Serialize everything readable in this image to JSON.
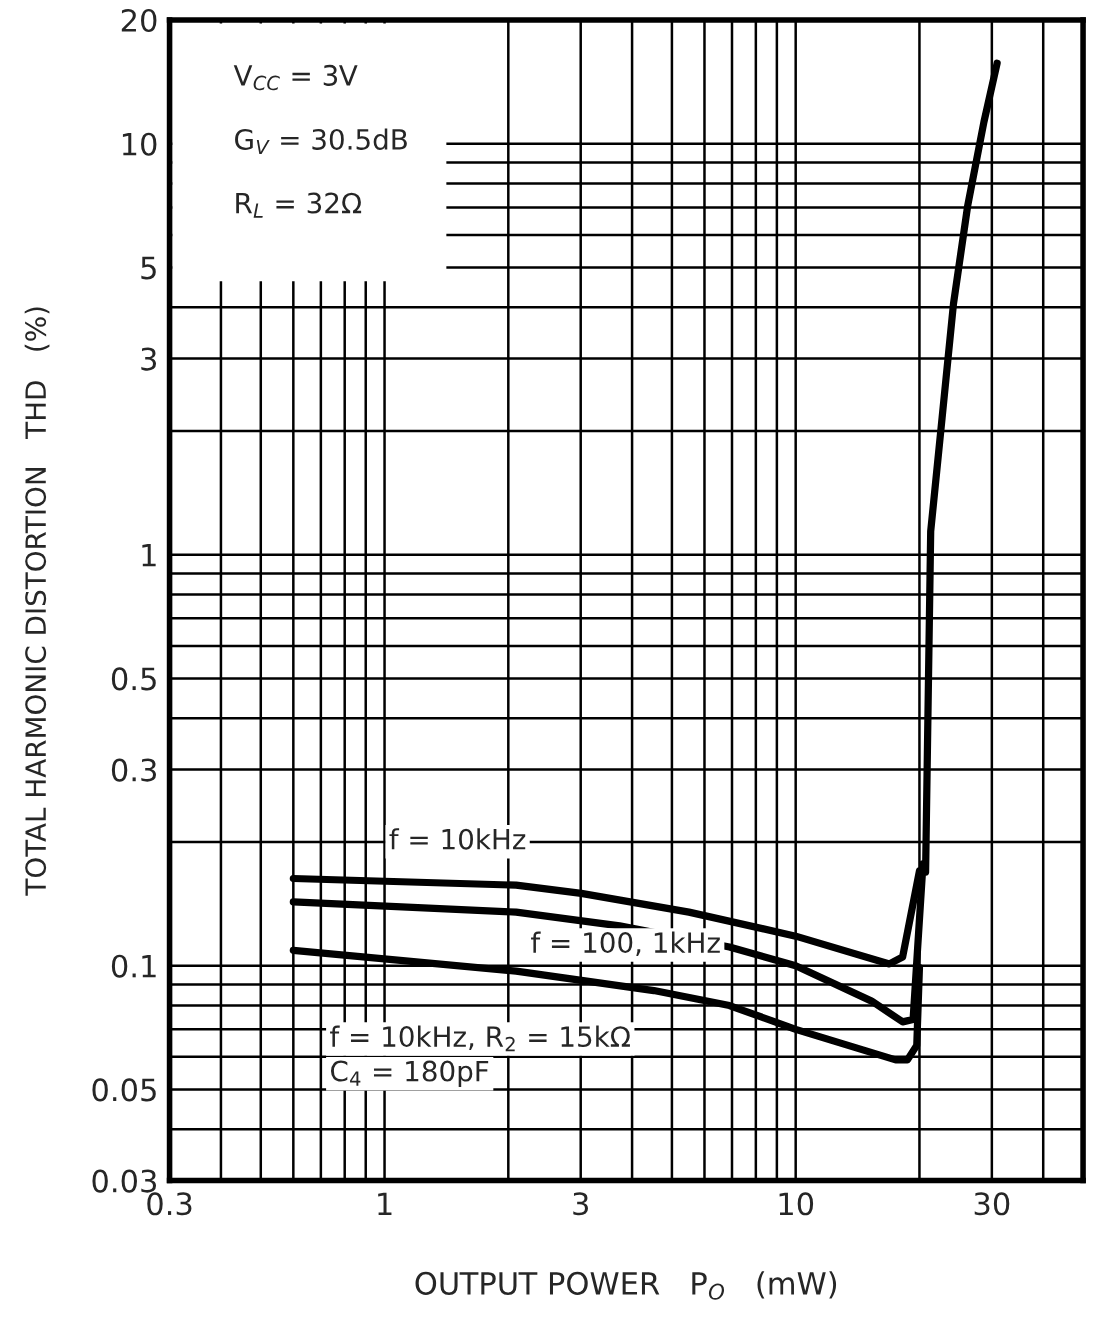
{
  "chart_data": {
    "type": "line",
    "xlabel": "OUTPUT POWER   P$_{O}$   (mW)",
    "ylabel": "TOTAL HARMONIC DISTORTION   THD   (%)",
    "log": "xy",
    "grid": true,
    "line_style": "solid",
    "marker": "none",
    "xlim": [
      0.3,
      50
    ],
    "ylim": [
      0.03,
      20
    ],
    "xticks": [
      0.3,
      {
        "value": 0.4,
        "label": null
      },
      {
        "value": 0.5,
        "label": null
      },
      {
        "value": 0.6,
        "label": null
      },
      {
        "value": 0.7,
        "label": null
      },
      {
        "value": 0.8,
        "label": null
      },
      {
        "value": 0.9,
        "label": null
      },
      1,
      {
        "value": 2,
        "label": null
      },
      3,
      {
        "value": 4,
        "label": null
      },
      {
        "value": 5,
        "label": null
      },
      {
        "value": 6,
        "label": null
      },
      {
        "value": 7,
        "label": null
      },
      {
        "value": 8,
        "label": null
      },
      {
        "value": 9,
        "label": null
      },
      10,
      {
        "value": 20,
        "label": null
      },
      30,
      {
        "value": 40,
        "label": null
      }
    ],
    "yticks": [
      0.03,
      {
        "value": 0.04,
        "label": null
      },
      0.05,
      {
        "value": 0.06,
        "label": null
      },
      {
        "value": 0.07,
        "label": null
      },
      {
        "value": 0.08,
        "label": null
      },
      {
        "value": 0.09,
        "label": null
      },
      0.1,
      {
        "value": 0.2,
        "label": null
      },
      0.3,
      {
        "value": 0.4,
        "label": null
      },
      0.5,
      {
        "value": 0.6,
        "label": null
      },
      {
        "value": 0.7,
        "label": null
      },
      {
        "value": 0.8,
        "label": null
      },
      {
        "value": 0.9,
        "label": null
      },
      1,
      {
        "value": 2,
        "label": null
      },
      3,
      {
        "value": 4,
        "label": null
      },
      5,
      {
        "value": 6,
        "label": null
      },
      {
        "value": 7,
        "label": null
      },
      {
        "value": 8,
        "label": null
      },
      {
        "value": 9,
        "label": null
      },
      10,
      20
    ],
    "series": [
      {
        "color": "#000000",
        "x": [
          0.6,
          2.09,
          3.01,
          5.5,
          10,
          16.9,
          18.2,
          20.0,
          20.7,
          21.3,
          22.7,
          24.2,
          26.2,
          28.7,
          30.9
        ],
        "values": [
          0.163,
          0.157,
          0.15,
          0.135,
          0.118,
          0.101,
          0.105,
          0.17,
          0.169,
          1.14,
          2.15,
          4.08,
          7.06,
          11.3,
          15.7
        ]
      },
      {
        "color": "#000000",
        "x": [
          0.6,
          2.09,
          3.73,
          6.9,
          10,
          15.3,
          18.2,
          19.3,
          20.4
        ],
        "values": [
          0.143,
          0.135,
          0.125,
          0.111,
          0.1,
          0.082,
          0.073,
          0.074,
          0.177
        ]
      },
      {
        "color": "#000000",
        "x": [
          0.6,
          2.09,
          4.52,
          6.9,
          10,
          17.5,
          18.7,
          19.7,
          20.0
        ],
        "values": [
          0.109,
          0.097,
          0.087,
          0.08,
          0.07,
          0.059,
          0.059,
          0.064,
          0.099
        ]
      }
    ],
    "annotations": [
      "V$_{CC}$ = 3V",
      "G$_{V}$ = 30.5dB",
      "R$_{L}$ = 32Ω",
      "f = 10kHz",
      "f = 100, 1kHz",
      "f = 10kHz, R$_{2}$ = 15kΩ",
      "C$_{4}$ = 180pF"
    ]
  }
}
